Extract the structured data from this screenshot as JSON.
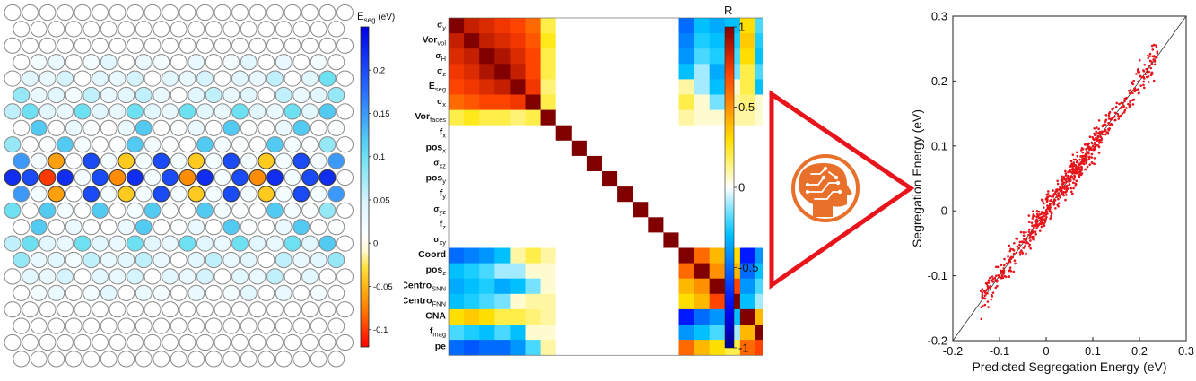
{
  "chart_data": [
    {
      "type": "heatmap",
      "title": "",
      "atom_grid": {
        "rows": 22,
        "cols_even": 20,
        "cols_odd": 19,
        "center_row": 10,
        "rows_with_color": [
          {
            "row": 3,
            "values": [
              0.0,
              0.02,
              0.03,
              0.0,
              0.02,
              0.04,
              0.0,
              0.03,
              0.02,
              0.0,
              0.03,
              0.0,
              0.02,
              0.04,
              0.0,
              0.03,
              0.0,
              0.02,
              0.0,
              0.0
            ]
          },
          {
            "row": 4,
            "values": [
              0.0,
              0.04,
              0.03,
              0.05,
              0.0,
              0.04,
              0.03,
              0.05,
              0.0,
              0.04,
              0.03,
              0.05,
              0.0,
              0.04,
              0.03,
              0.06,
              0.0,
              0.04,
              0.1
            ]
          },
          {
            "row": 5,
            "values": [
              0.08,
              0.03,
              0.04,
              0.02,
              0.06,
              0.03,
              0.04,
              0.06,
              0.03,
              0.0,
              0.04,
              0.06,
              0.03,
              0.04,
              0.0,
              0.06,
              0.03,
              0.04,
              0.08,
              0.0
            ]
          },
          {
            "row": 6,
            "values": [
              0.06,
              0.1,
              0.04,
              0.03,
              0.1,
              0.04,
              0.03,
              0.1,
              0.04,
              0.03,
              0.1,
              0.04,
              0.03,
              0.1,
              0.04,
              0.03,
              0.1,
              0.04,
              0.12
            ]
          },
          {
            "row": 7,
            "values": [
              0.0,
              0.12,
              0.0,
              0.03,
              0.01,
              0.0,
              0.03,
              0.12,
              0.0,
              0.01,
              0.03,
              0.0,
              0.12,
              0.01,
              0.0,
              0.03,
              0.12,
              0.0,
              0.01,
              0.0
            ]
          },
          {
            "row": 8,
            "values": [
              0.08,
              0.0,
              0.01,
              0.12,
              0.02,
              0.0,
              0.01,
              0.12,
              0.02,
              0.01,
              0.0,
              0.12,
              0.02,
              0.01,
              0.0,
              0.12,
              0.02,
              0.01,
              0.08
            ]
          },
          {
            "row": 9,
            "values": [
              0.15,
              0.02,
              -0.06,
              0.0,
              0.2,
              0.02,
              -0.04,
              0.02,
              0.2,
              0.02,
              -0.04,
              0.02,
              0.2,
              0.02,
              -0.04,
              0.02,
              0.2,
              0.02,
              0.15,
              0.0
            ]
          },
          {
            "row": 10,
            "values": [
              0.22,
              0.2,
              -0.1,
              0.22,
              0.02,
              0.2,
              -0.07,
              0.22,
              0.02,
              0.2,
              -0.07,
              0.22,
              0.02,
              0.2,
              -0.07,
              0.22,
              0.02,
              0.2,
              0.22
            ]
          },
          {
            "row": 11,
            "values": [
              0.15,
              0.02,
              -0.06,
              0.0,
              0.2,
              0.02,
              -0.04,
              0.02,
              0.2,
              0.02,
              -0.04,
              0.02,
              0.2,
              0.02,
              -0.04,
              0.02,
              0.2,
              0.02,
              0.15,
              0.0
            ]
          },
          {
            "row": 12,
            "values": [
              0.1,
              0.0,
              0.12,
              0.02,
              0.01,
              0.12,
              0.0,
              0.02,
              0.12,
              0.01,
              0.0,
              0.12,
              0.02,
              0.01,
              0.0,
              0.12,
              0.02,
              0.01,
              0.08
            ]
          },
          {
            "row": 13,
            "values": [
              0.0,
              0.12,
              0.0,
              0.03,
              0.01,
              0.0,
              0.03,
              0.12,
              0.0,
              0.01,
              0.03,
              0.0,
              0.12,
              0.01,
              0.0,
              0.03,
              0.12,
              0.0,
              0.01,
              0.0
            ]
          },
          {
            "row": 14,
            "values": [
              0.06,
              0.1,
              0.04,
              0.03,
              0.1,
              0.04,
              0.03,
              0.1,
              0.04,
              0.03,
              0.1,
              0.04,
              0.03,
              0.1,
              0.04,
              0.03,
              0.1,
              0.04,
              0.12
            ]
          },
          {
            "row": 15,
            "values": [
              0.08,
              0.03,
              0.04,
              0.02,
              0.06,
              0.03,
              0.04,
              0.06,
              0.03,
              0.0,
              0.04,
              0.06,
              0.03,
              0.04,
              0.0,
              0.06,
              0.03,
              0.04,
              0.08,
              0.0
            ]
          },
          {
            "row": 16,
            "values": [
              0.0,
              0.04,
              0.03,
              0.05,
              0.0,
              0.04,
              0.03,
              0.05,
              0.0,
              0.04,
              0.03,
              0.05,
              0.0,
              0.04,
              0.03,
              0.06,
              0.0,
              0.04,
              0.0
            ]
          },
          {
            "row": 17,
            "values": [
              0.0,
              0.02,
              0.03,
              0.0,
              0.02,
              0.04,
              0.0,
              0.03,
              0.02,
              0.0,
              0.03,
              0.0,
              0.02,
              0.04,
              0.0,
              0.03,
              0.0,
              0.02,
              0.0,
              0.0
            ]
          }
        ]
      },
      "colorbar": {
        "label_main": "E",
        "label_sub": "seg",
        "label_unit": " (eV)",
        "range": [
          -0.12,
          0.25
        ],
        "ticks": [
          "0.2",
          "0.15",
          "0.1",
          "0.05",
          "0",
          "-0.05",
          "-0.1"
        ],
        "tick_values": [
          0.2,
          0.15,
          0.1,
          0.05,
          0,
          -0.05,
          -0.1
        ]
      }
    },
    {
      "type": "heatmap",
      "title": "",
      "colorbar": {
        "label": "R",
        "range": [
          -1,
          1
        ],
        "ticks": [
          "1",
          "0.5",
          "0",
          "-0.5",
          "-1"
        ],
        "tick_values": [
          1,
          0.5,
          0,
          -0.5,
          -1
        ]
      },
      "row_labels": [
        {
          "main": "σ",
          "sub": "y"
        },
        {
          "main": "Vor",
          "sub": "vol"
        },
        {
          "main": "σ",
          "sub": "H"
        },
        {
          "main": "σ",
          "sub": "z"
        },
        {
          "main": "E",
          "sub": "seg"
        },
        {
          "main": "σ",
          "sub": "x"
        },
        {
          "main": "Vor",
          "sub": "faces"
        },
        {
          "main": "f",
          "sub": "x"
        },
        {
          "main": "pos",
          "sub": "x"
        },
        {
          "main": "σ",
          "sub": "xz"
        },
        {
          "main": "pos",
          "sub": "y"
        },
        {
          "main": "f",
          "sub": "y"
        },
        {
          "main": "σ",
          "sub": "yz"
        },
        {
          "main": "f",
          "sub": "z"
        },
        {
          "main": "σ",
          "sub": "xy"
        },
        {
          "main": "Coord",
          "sub": ""
        },
        {
          "main": "pos",
          "sub": "z"
        },
        {
          "main": "Centro",
          "sub": "SNN"
        },
        {
          "main": "Centro",
          "sub": "FNN"
        },
        {
          "main": "CNA",
          "sub": ""
        },
        {
          "main": "f",
          "sub": "mag"
        },
        {
          "main": "pe",
          "sub": ""
        }
      ],
      "matrix": [
        [
          1.0,
          0.85,
          0.8,
          0.75,
          0.7,
          0.6,
          0.2,
          0,
          0,
          0,
          0,
          0,
          0,
          0,
          0,
          -0.5,
          -0.3,
          -0.35,
          -0.3,
          0.3,
          -0.2,
          -0.5
        ],
        [
          0.85,
          1.0,
          0.85,
          0.8,
          0.75,
          0.65,
          0.25,
          0,
          0,
          0,
          0,
          0,
          0,
          0,
          0,
          -0.45,
          -0.25,
          -0.3,
          -0.25,
          0.35,
          -0.25,
          -0.55
        ],
        [
          0.8,
          0.85,
          1.0,
          0.9,
          0.8,
          0.7,
          0.2,
          0,
          0,
          0,
          0,
          0,
          0,
          0,
          0,
          -0.4,
          -0.2,
          -0.25,
          -0.2,
          0.3,
          -0.3,
          -0.5
        ],
        [
          0.75,
          0.8,
          0.9,
          1.0,
          0.85,
          0.7,
          0.2,
          0,
          0,
          0,
          0,
          0,
          0,
          0,
          0,
          -0.3,
          -0.1,
          -0.35,
          -0.15,
          0.2,
          -0.2,
          -0.5
        ],
        [
          0.7,
          0.75,
          0.8,
          0.85,
          1.0,
          0.75,
          0.15,
          0,
          0,
          0,
          0,
          0,
          0,
          0,
          0,
          0.1,
          -0.1,
          -0.3,
          0.05,
          0.2,
          -0.3,
          -0.4
        ],
        [
          0.6,
          0.65,
          0.7,
          0.7,
          0.75,
          1.0,
          0.2,
          0,
          0,
          0,
          0,
          0,
          0,
          0,
          0,
          0.2,
          0.05,
          -0.15,
          0.1,
          0.15,
          0.05,
          -0.2
        ],
        [
          0.2,
          0.25,
          0.2,
          0.2,
          0.15,
          0.2,
          1.0,
          0,
          0,
          0,
          0,
          0,
          0,
          0,
          0,
          0.1,
          0.05,
          0.05,
          0.1,
          0.1,
          0.05,
          0.1
        ],
        [
          0,
          0,
          0,
          0,
          0,
          0,
          0,
          1.0,
          0,
          0,
          0,
          0,
          0,
          0,
          0,
          0,
          0,
          0,
          0,
          0,
          0,
          0
        ],
        [
          0,
          0,
          0,
          0,
          0,
          0,
          0,
          0,
          1.0,
          0,
          0,
          0,
          0,
          0,
          0,
          0,
          0,
          0,
          0,
          0,
          0,
          0
        ],
        [
          0,
          0,
          0,
          0,
          0,
          0,
          0,
          0,
          0,
          1.0,
          0,
          0,
          0,
          0,
          0,
          0,
          0,
          0,
          0,
          0,
          0,
          0
        ],
        [
          0,
          0,
          0,
          0,
          0,
          0,
          0,
          0,
          0,
          0,
          1.0,
          0,
          0,
          0,
          0,
          0,
          0,
          0,
          0,
          0,
          0,
          0
        ],
        [
          0,
          0,
          0,
          0,
          0,
          0,
          0,
          0,
          0,
          0,
          0,
          1.0,
          0,
          0,
          0,
          0,
          0,
          0,
          0,
          0,
          0,
          0
        ],
        [
          0,
          0,
          0,
          0,
          0,
          0,
          0,
          0,
          0,
          0,
          0,
          0,
          1.0,
          0,
          0,
          0,
          0,
          0,
          0,
          0,
          0,
          0
        ],
        [
          0,
          0,
          0,
          0,
          0,
          0,
          0,
          0,
          0,
          0,
          0,
          0,
          0,
          1.0,
          0,
          0,
          0,
          0,
          0,
          0,
          0,
          0
        ],
        [
          0,
          0,
          0,
          0,
          0,
          0,
          0,
          0,
          0,
          0,
          0,
          0,
          0,
          0,
          1.0,
          0,
          0,
          0,
          0,
          0,
          0,
          0
        ],
        [
          -0.5,
          -0.45,
          -0.4,
          -0.3,
          0.1,
          0.2,
          0.1,
          0,
          0,
          0,
          0,
          0,
          0,
          0,
          0,
          1.0,
          0.6,
          0.4,
          0.3,
          -0.7,
          -0.4,
          0.6
        ],
        [
          -0.3,
          -0.25,
          -0.2,
          -0.1,
          -0.1,
          0.05,
          0.05,
          0,
          0,
          0,
          0,
          0,
          0,
          0,
          0,
          0.6,
          1.0,
          0.5,
          0.4,
          -0.5,
          -0.3,
          0.4
        ],
        [
          -0.35,
          -0.3,
          -0.25,
          -0.35,
          -0.3,
          -0.15,
          0.05,
          0,
          0,
          0,
          0,
          0,
          0,
          0,
          0,
          0.4,
          0.5,
          1.0,
          0.7,
          -0.4,
          -0.2,
          0.3
        ],
        [
          -0.3,
          -0.25,
          -0.2,
          -0.15,
          0.05,
          0.1,
          0.1,
          0,
          0,
          0,
          0,
          0,
          0,
          0,
          0,
          0.3,
          0.4,
          0.7,
          1.0,
          -0.3,
          -0.1,
          0.2
        ],
        [
          0.3,
          0.35,
          0.3,
          0.2,
          0.2,
          0.15,
          0.1,
          0,
          0,
          0,
          0,
          0,
          0,
          0,
          0,
          -0.7,
          -0.5,
          -0.4,
          -0.3,
          1.0,
          0.4,
          0.6
        ],
        [
          -0.2,
          -0.25,
          -0.3,
          -0.2,
          -0.3,
          0.05,
          0.05,
          0,
          0,
          0,
          0,
          0,
          0,
          0,
          0,
          -0.4,
          -0.3,
          -0.2,
          -0.1,
          0.4,
          1.0,
          0.7
        ],
        [
          -0.5,
          -0.55,
          -0.5,
          -0.5,
          -0.4,
          -0.2,
          0.1,
          0,
          0,
          0,
          0,
          0,
          0,
          0,
          0,
          0.6,
          0.4,
          0.3,
          0.2,
          0.6,
          0.7,
          1.0
        ]
      ]
    },
    {
      "type": "scatter",
      "title": "",
      "xlabel": "Predicted Segregation Energy (eV)",
      "ylabel": "Segregation Energy (eV)",
      "xlim": [
        -0.2,
        0.3
      ],
      "ylim": [
        -0.2,
        0.3
      ],
      "xticks": [
        "-0.2",
        "-0.1",
        "0",
        "0.1",
        "0.2",
        "0.3"
      ],
      "yticks": [
        "-0.2",
        "-0.1",
        "0",
        "0.1",
        "0.2",
        "0.3"
      ],
      "xtick_values": [
        -0.2,
        -0.1,
        0,
        0.1,
        0.2,
        0.3
      ],
      "ytick_values": [
        -0.2,
        -0.1,
        0,
        0.1,
        0.2,
        0.3
      ],
      "reference_line": {
        "x": [
          -0.2,
          0.3
        ],
        "y": [
          -0.2,
          0.3
        ]
      },
      "point_color": "#e8141b",
      "x_range_of_points": [
        -0.14,
        0.24
      ],
      "point_count": 700
    }
  ],
  "colors": {
    "atom_outline": "#8a8a8a",
    "atom_empty": "#ffffff",
    "triangle": "#e8141b",
    "brain_icon": "#e8702a"
  },
  "icons": {
    "ml_icon": "brain-circuit-icon"
  }
}
